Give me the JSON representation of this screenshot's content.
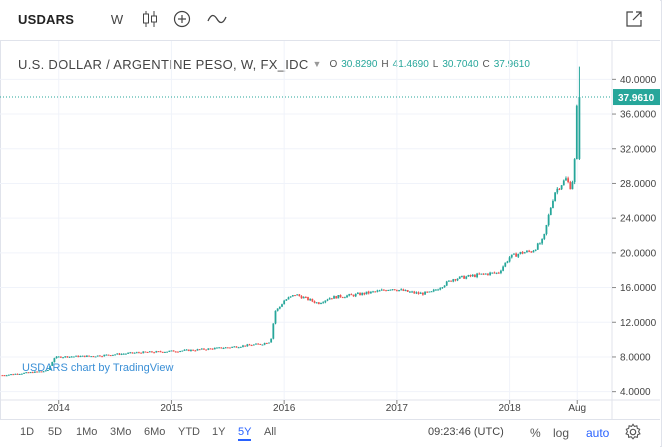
{
  "toolbar": {
    "symbol": "USDARS",
    "interval": "W"
  },
  "legend": {
    "title": "U.S. DOLLAR / ARGENTINE PESO, W, FX_IDC",
    "o_label": "O",
    "o_value": "30.8290",
    "h_label": "H",
    "h_value": "41.4690",
    "l_label": "L",
    "l_value": "30.7040",
    "c_label": "C",
    "c_value": "37.9610"
  },
  "watermark": "USDARS chart by TradingView",
  "price_axis": {
    "ticks": [
      "40.0000",
      "36.0000",
      "32.0000",
      "28.0000",
      "24.0000",
      "20.0000",
      "16.0000",
      "12.0000",
      "8.0000",
      "4.0000"
    ],
    "last_price": "37.9610"
  },
  "time_axis": {
    "ticks": [
      "2014",
      "2015",
      "2016",
      "2017",
      "2018",
      "Aug"
    ]
  },
  "ranges": [
    "1D",
    "5D",
    "1Mo",
    "3Mo",
    "6Mo",
    "YTD",
    "1Y",
    "5Y",
    "All"
  ],
  "active_range": "5Y",
  "status": {
    "clock": "09:23:46 (UTC)",
    "percent": "%",
    "log": "log",
    "auto": "auto"
  },
  "colors": {
    "up": "#26a69a",
    "down": "#ef5350",
    "last_price_line": "#26a69a",
    "grid": "#f0f3fa",
    "link": "#2962ff"
  },
  "chart_data": {
    "type": "candlestick",
    "title": "U.S. DOLLAR / ARGENTINE PESO, W, FX_IDC",
    "ylim": [
      3.5,
      42
    ],
    "grid": true,
    "series": [
      {
        "x": [
          2013.5,
          2013.9,
          2013.96,
          2014.0,
          2014.1,
          2014.3,
          2014.5,
          2014.7,
          2014.9,
          2015.2,
          2015.5,
          2015.8,
          2015.88,
          2015.92,
          2015.95,
          2016.0,
          2016.1,
          2016.18,
          2016.3,
          2016.4,
          2016.5,
          2016.6,
          2016.75,
          2016.85,
          2016.95,
          2017.1,
          2017.2,
          2017.3,
          2017.4,
          2017.5,
          2017.6,
          2017.7,
          2017.8,
          2017.9,
          2018.0,
          2018.1,
          2018.2,
          2018.3,
          2018.35,
          2018.4,
          2018.45,
          2018.5,
          2018.55,
          2018.58,
          2018.6
        ],
        "close": [
          5.9,
          6.4,
          7.9,
          8.0,
          8.05,
          8.1,
          8.3,
          8.5,
          8.6,
          8.8,
          9.1,
          9.5,
          9.8,
          13.3,
          13.6,
          14.5,
          15.2,
          14.8,
          14.2,
          14.8,
          15.0,
          15.1,
          15.4,
          15.6,
          15.9,
          15.5,
          15.3,
          15.4,
          16.2,
          17.0,
          17.2,
          17.4,
          17.6,
          17.7,
          19.5,
          20.0,
          20.2,
          21.5,
          24.5,
          27.0,
          27.8,
          28.5,
          27.4,
          31.0,
          37.96
        ]
      }
    ]
  }
}
